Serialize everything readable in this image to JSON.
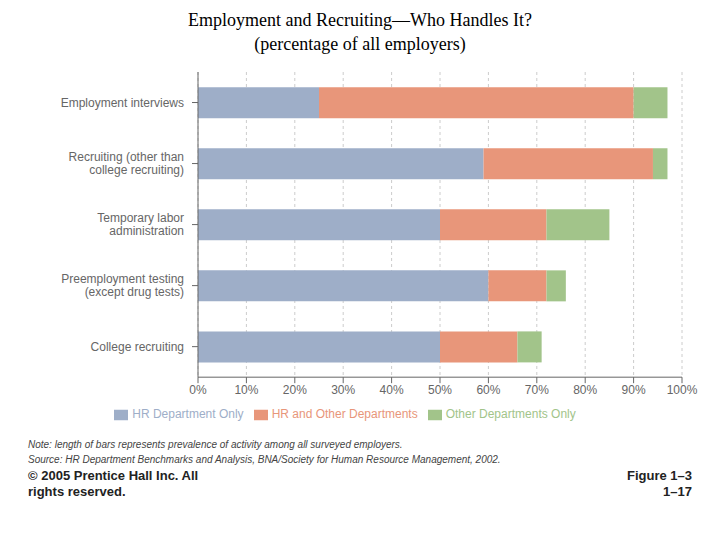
{
  "chart_data": {
    "type": "bar",
    "orientation": "horizontal",
    "stacked": true,
    "title": "Employment and Recruiting—Who Handles It?",
    "subtitle": "(percentage of all employers)",
    "categories": [
      "Employment interviews",
      "Recruiting (other than\ncollege recruiting)",
      "Temporary labor\nadministration",
      "Preemployment testing\n(except drug tests)",
      "College recruiting"
    ],
    "series": [
      {
        "name": "HR Department Only",
        "color": "#9eaec8",
        "values": [
          25,
          59,
          50,
          60,
          50
        ]
      },
      {
        "name": "HR and Other Departments",
        "color": "#e8967a",
        "values": [
          65,
          35,
          22,
          12,
          16
        ]
      },
      {
        "name": "Other Departments Only",
        "color": "#a2c48a",
        "values": [
          7,
          3,
          13,
          4,
          5
        ]
      }
    ],
    "xlim": [
      0,
      100
    ],
    "xticks": [
      {
        "value": 0,
        "label": "0%"
      },
      {
        "value": 10,
        "label": "10%"
      },
      {
        "value": 20,
        "label": "20%"
      },
      {
        "value": 30,
        "label": "30%"
      },
      {
        "value": 40,
        "label": "40%"
      },
      {
        "value": 50,
        "label": "50%"
      },
      {
        "value": 60,
        "label": "60%"
      },
      {
        "value": 70,
        "label": "70%"
      },
      {
        "value": 80,
        "label": "80%"
      },
      {
        "value": 90,
        "label": "90%"
      },
      {
        "value": 100,
        "label": "100%"
      }
    ],
    "grid": true,
    "legend": "bottom",
    "annotations": [
      "Note: length of bars represents prevalence of activity among all surveyed employers.",
      "Source: HR Department Benchmarks and Analysis, BNA/Society for Human Resource Management, 2002.",
      "© 2005 Prentice Hall Inc. All\nrights reserved.",
      "Figure 1–3\n1–17"
    ]
  }
}
